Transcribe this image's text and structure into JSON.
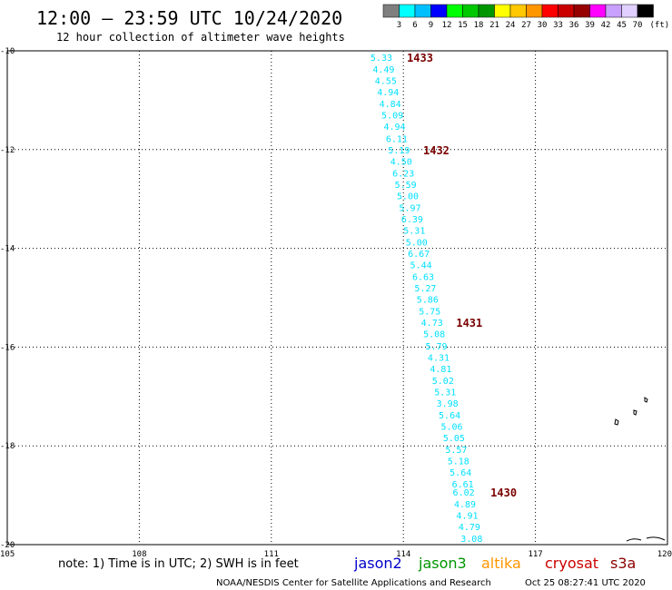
{
  "title": "12:00 – 23:59 UTC 10/24/2020",
  "subtitle": "12 hour collection of altimeter wave heights",
  "color_scale": {
    "labels": [
      "3",
      "6",
      "9",
      "12",
      "15",
      "18",
      "21",
      "24",
      "27",
      "30",
      "33",
      "36",
      "39",
      "42",
      "45",
      "70"
    ],
    "unit": "(ft)",
    "colors": [
      "#7f7f7f",
      "#00ffff",
      "#00bfff",
      "#0000ff",
      "#00ff00",
      "#00c800",
      "#009600",
      "#ffff00",
      "#ffc800",
      "#ff9600",
      "#ff0000",
      "#c80000",
      "#960000",
      "#ff00ff",
      "#c8a0ff",
      "#e0d0ff",
      "#000000"
    ]
  },
  "axes": {
    "lon_ticks": [
      "105",
      "108",
      "111",
      "114",
      "117",
      "120"
    ],
    "lat_ticks": [
      "-10",
      "-12",
      "-14",
      "-16",
      "-18",
      "-20"
    ],
    "lon_range": [
      105,
      120
    ],
    "lat_range": [
      -20,
      -10
    ]
  },
  "swh_color": "#00e0ff",
  "time_color": "#7a0000",
  "track": [
    {
      "lon": 113.5,
      "lat": -10.13,
      "value": "5.33"
    },
    {
      "lon": 113.55,
      "lat": -10.37,
      "value": "4.49"
    },
    {
      "lon": 113.6,
      "lat": -10.6,
      "value": "4.55"
    },
    {
      "lon": 113.65,
      "lat": -10.83,
      "value": "4.94"
    },
    {
      "lon": 113.7,
      "lat": -11.07,
      "value": "4.84"
    },
    {
      "lon": 113.75,
      "lat": -11.3,
      "value": "5.09"
    },
    {
      "lon": 113.8,
      "lat": -11.53,
      "value": "4.94"
    },
    {
      "lon": 113.85,
      "lat": -11.77,
      "value": "6.11"
    },
    {
      "lon": 113.9,
      "lat": -12.0,
      "value": "5.19"
    },
    {
      "lon": 113.95,
      "lat": -12.23,
      "value": "4.50"
    },
    {
      "lon": 114.0,
      "lat": -12.47,
      "value": "6.23"
    },
    {
      "lon": 114.05,
      "lat": -12.7,
      "value": "5.59"
    },
    {
      "lon": 114.1,
      "lat": -12.93,
      "value": "5.00"
    },
    {
      "lon": 114.15,
      "lat": -13.17,
      "value": "5.97"
    },
    {
      "lon": 114.2,
      "lat": -13.4,
      "value": "6.39"
    },
    {
      "lon": 114.25,
      "lat": -13.63,
      "value": "5.31"
    },
    {
      "lon": 114.3,
      "lat": -13.87,
      "value": "5.00"
    },
    {
      "lon": 114.35,
      "lat": -14.1,
      "value": "6.67"
    },
    {
      "lon": 114.4,
      "lat": -14.33,
      "value": "5.44"
    },
    {
      "lon": 114.45,
      "lat": -14.57,
      "value": "6.63"
    },
    {
      "lon": 114.5,
      "lat": -14.8,
      "value": "5.27"
    },
    {
      "lon": 114.55,
      "lat": -15.03,
      "value": "5.86"
    },
    {
      "lon": 114.6,
      "lat": -15.27,
      "value": "5.75"
    },
    {
      "lon": 114.65,
      "lat": -15.5,
      "value": "4.73"
    },
    {
      "lon": 114.7,
      "lat": -15.73,
      "value": "5.08"
    },
    {
      "lon": 114.75,
      "lat": -15.97,
      "value": "5.79"
    },
    {
      "lon": 114.8,
      "lat": -16.2,
      "value": "4.31"
    },
    {
      "lon": 114.85,
      "lat": -16.43,
      "value": "4.81"
    },
    {
      "lon": 114.9,
      "lat": -16.67,
      "value": "5.02"
    },
    {
      "lon": 114.95,
      "lat": -16.9,
      "value": "5.31"
    },
    {
      "lon": 115.0,
      "lat": -17.13,
      "value": "3.98"
    },
    {
      "lon": 115.05,
      "lat": -17.37,
      "value": "5.64"
    },
    {
      "lon": 115.1,
      "lat": -17.6,
      "value": "5.06"
    },
    {
      "lon": 115.15,
      "lat": -17.83,
      "value": "5.05"
    },
    {
      "lon": 115.2,
      "lat": -18.07,
      "value": "5.57"
    },
    {
      "lon": 115.25,
      "lat": -18.3,
      "value": "5.18"
    },
    {
      "lon": 115.3,
      "lat": -18.53,
      "value": "5.64"
    },
    {
      "lon": 115.35,
      "lat": -18.77,
      "value": "6.61"
    },
    {
      "lon": 115.37,
      "lat": -18.93,
      "value": "6.02"
    },
    {
      "lon": 115.4,
      "lat": -19.17,
      "value": "4.89"
    },
    {
      "lon": 115.45,
      "lat": -19.4,
      "value": "4.91"
    },
    {
      "lon": 115.5,
      "lat": -19.63,
      "value": "4.79"
    },
    {
      "lon": 115.55,
      "lat": -19.87,
      "value": "3.08"
    }
  ],
  "time_labels": [
    {
      "lon": 114.08,
      "lat": -10.13,
      "value": "1433"
    },
    {
      "lon": 114.45,
      "lat": -12.0,
      "value": "1432"
    },
    {
      "lon": 115.2,
      "lat": -15.5,
      "value": "1431"
    },
    {
      "lon": 115.98,
      "lat": -18.93,
      "value": "1430"
    }
  ],
  "note": "note: 1) Time is in UTC; 2) SWH is in feet",
  "satellites": [
    {
      "name": "jason2",
      "color": "#0000cc"
    },
    {
      "name": "jason3",
      "color": "#009600"
    },
    {
      "name": "altika",
      "color": "#ff9600"
    },
    {
      "name": "cryosat",
      "color": "#cc0000"
    },
    {
      "name": "s3a",
      "color": "#8b0000"
    }
  ],
  "footer_credit": "NOAA/NESDIS Center for Satellite Applications and Research",
  "footer_timestamp": "Oct 25 08:27:41 UTC 2020"
}
